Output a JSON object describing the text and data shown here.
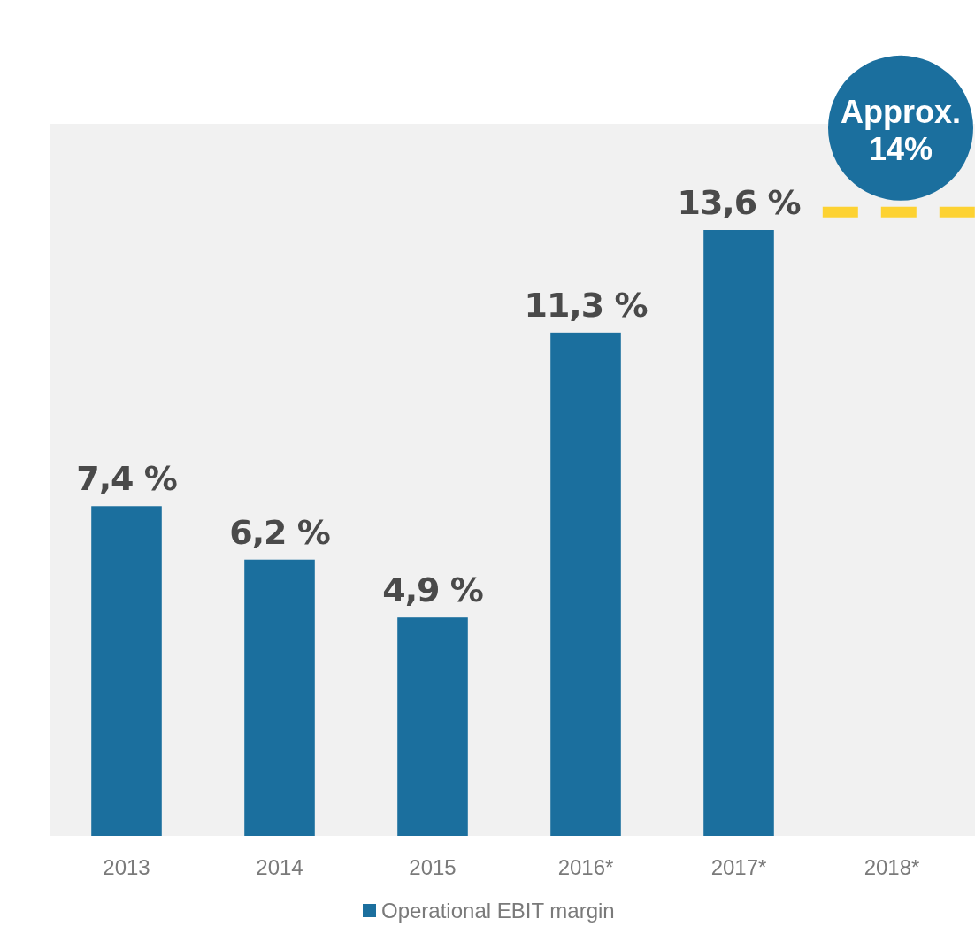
{
  "chart_data": {
    "type": "bar",
    "categories": [
      "2013",
      "2014",
      "2015",
      "2016*",
      "2017*",
      "2018*"
    ],
    "series": [
      {
        "name": "Operational EBIT margin",
        "color": "#1b6f9e",
        "values": [
          7.4,
          6.2,
          4.9,
          11.3,
          13.6,
          null
        ],
        "value_labels": [
          "7,4 %",
          "6,2 %",
          "4,9 %",
          "11,3 %",
          "13,6 %",
          null
        ]
      }
    ],
    "ref_lines": [
      {
        "axis": "y",
        "value": 14,
        "color": "#fdd232",
        "line_style": "dashed"
      }
    ],
    "annotations": [
      {
        "text": "Approx. 14%",
        "x": "2018*",
        "y": 14
      }
    ],
    "legend": "bottom",
    "grid": false
  }
}
